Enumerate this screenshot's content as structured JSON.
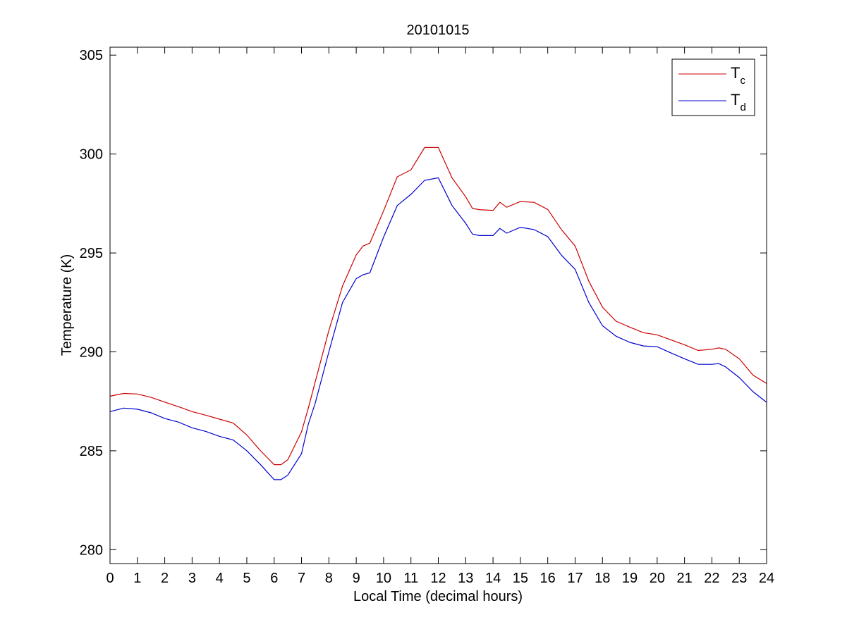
{
  "chart_data": {
    "type": "line",
    "title": "20101015",
    "xlabel": "Local Time (decimal hours)",
    "ylabel": "Temperature (K)",
    "xlim": [
      0,
      24
    ],
    "ylim": [
      279.3,
      305.4
    ],
    "xticks": [
      0,
      1,
      2,
      3,
      4,
      5,
      6,
      7,
      8,
      9,
      10,
      11,
      12,
      13,
      14,
      15,
      16,
      17,
      18,
      19,
      20,
      21,
      22,
      23,
      24
    ],
    "yticks": [
      280,
      285,
      290,
      295,
      300,
      305
    ],
    "grid": false,
    "legend_position": "top-right",
    "series": [
      {
        "name": "T_c",
        "legend_main": "T",
        "legend_sub": "c",
        "color": "#cc0000",
        "x": [
          0,
          0.5,
          1,
          1.5,
          2,
          2.5,
          3,
          3.5,
          4,
          4.5,
          5,
          5.5,
          6,
          6.25,
          6.5,
          7,
          7.25,
          7.5,
          8,
          8.5,
          9,
          9.25,
          9.5,
          10,
          10.5,
          11,
          11.5,
          12,
          12.5,
          13,
          13.25,
          13.5,
          14,
          14.25,
          14.5,
          15,
          15.5,
          16,
          16.5,
          17,
          17.5,
          18,
          18.5,
          19,
          19.5,
          20,
          20.5,
          21,
          21.5,
          22,
          22.25,
          22.5,
          23,
          23.5,
          24
        ],
        "y": [
          287.76,
          287.9,
          287.87,
          287.7,
          287.46,
          287.23,
          286.98,
          286.8,
          286.6,
          286.4,
          285.8,
          285.0,
          284.3,
          284.3,
          284.55,
          285.95,
          287.16,
          288.48,
          291.08,
          293.33,
          294.9,
          295.35,
          295.5,
          297.13,
          298.85,
          299.2,
          300.33,
          300.33,
          298.8,
          297.84,
          297.25,
          297.19,
          297.15,
          297.56,
          297.31,
          297.6,
          297.56,
          297.2,
          296.18,
          295.35,
          293.57,
          292.26,
          291.55,
          291.25,
          290.97,
          290.86,
          290.61,
          290.36,
          290.07,
          290.13,
          290.2,
          290.13,
          289.65,
          288.83,
          288.4
        ]
      },
      {
        "name": "T_d",
        "legend_main": "T",
        "legend_sub": "d",
        "color": "#0000cc",
        "x": [
          0,
          0.5,
          1,
          1.5,
          2,
          2.5,
          3,
          3.5,
          4,
          4.5,
          5,
          5.5,
          6,
          6.25,
          6.5,
          7,
          7.25,
          7.5,
          8,
          8.5,
          9,
          9.25,
          9.5,
          10,
          10.5,
          11,
          11.5,
          12,
          12.5,
          13,
          13.25,
          13.5,
          14,
          14.25,
          14.5,
          15,
          15.5,
          16,
          16.5,
          17,
          17.5,
          18,
          18.5,
          19,
          19.5,
          20,
          20.5,
          21,
          21.5,
          22,
          22.25,
          22.5,
          23,
          23.5,
          24
        ],
        "y": [
          286.98,
          287.16,
          287.1,
          286.92,
          286.63,
          286.45,
          286.16,
          285.98,
          285.73,
          285.55,
          285.0,
          284.3,
          283.54,
          283.54,
          283.77,
          284.85,
          286.35,
          287.4,
          290.0,
          292.5,
          293.7,
          293.9,
          294.0,
          295.8,
          297.4,
          297.96,
          298.67,
          298.8,
          297.4,
          296.5,
          295.95,
          295.88,
          295.88,
          296.24,
          296.0,
          296.3,
          296.18,
          295.82,
          294.89,
          294.17,
          292.5,
          291.32,
          290.79,
          290.48,
          290.3,
          290.26,
          289.95,
          289.65,
          289.37,
          289.37,
          289.41,
          289.24,
          288.7,
          287.99,
          287.45
        ]
      }
    ]
  }
}
